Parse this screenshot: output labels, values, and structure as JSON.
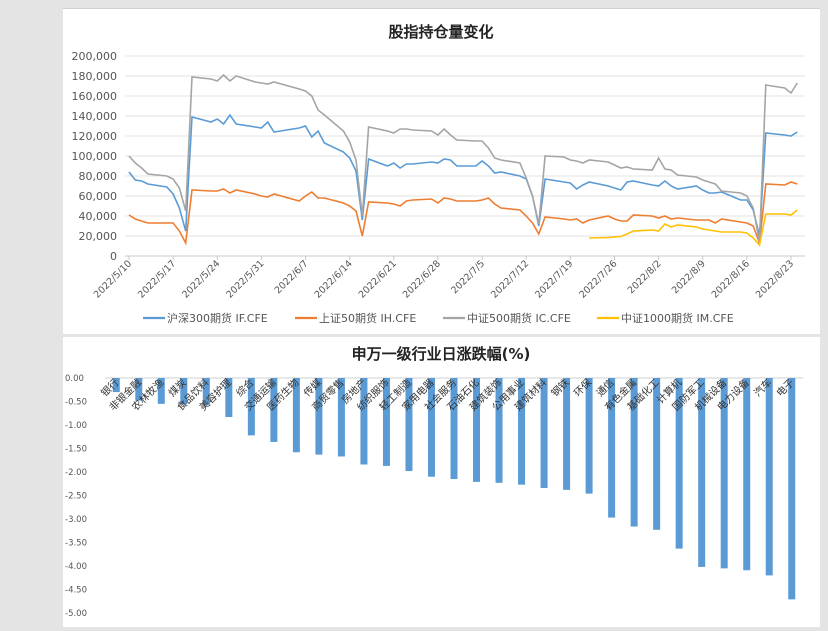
{
  "chart_data": [
    {
      "type": "line",
      "title": "股指持仓量变化",
      "xlabel": "",
      "ylabel": "",
      "ylim": [
        0,
        200000
      ],
      "yticks": [
        "0",
        "20,000",
        "40,000",
        "60,000",
        "80,000",
        "100,000",
        "120,000",
        "140,000",
        "160,000",
        "180,000",
        "200,000"
      ],
      "xtick_labels": [
        "2022/5/10",
        "2022/5/17",
        "2022/5/24",
        "2022/5/31",
        "2022/6/7",
        "2022/6/14",
        "2022/6/21",
        "2022/6/28",
        "2022/7/5",
        "2022/7/12",
        "2022/7/19",
        "2022/7/26",
        "2022/8/2",
        "2022/8/9",
        "2022/8/16",
        "2022/8/23"
      ],
      "grid": true,
      "legend_position": "bottom",
      "x": [
        "5/10",
        "5/11",
        "5/12",
        "5/13",
        "5/16",
        "5/17",
        "5/18",
        "5/19",
        "5/20",
        "5/23",
        "5/24",
        "5/25",
        "5/26",
        "5/27",
        "5/30",
        "5/31",
        "6/1",
        "6/2",
        "6/6",
        "6/7",
        "6/8",
        "6/9",
        "6/10",
        "6/13",
        "6/14",
        "6/15",
        "6/16",
        "6/17",
        "6/20",
        "6/21",
        "6/22",
        "6/23",
        "6/24",
        "6/27",
        "6/28",
        "6/29",
        "6/30",
        "7/1",
        "7/4",
        "7/5",
        "7/6",
        "7/7",
        "7/8",
        "7/11",
        "7/12",
        "7/13",
        "7/14",
        "7/15",
        "7/18",
        "7/19",
        "7/20",
        "7/21",
        "7/22",
        "7/25",
        "7/26",
        "7/27",
        "7/28",
        "7/29",
        "8/1",
        "8/2",
        "8/3",
        "8/4",
        "8/5",
        "8/8",
        "8/9",
        "8/10",
        "8/11",
        "8/12",
        "8/15",
        "8/16",
        "8/17",
        "8/18",
        "8/19",
        "8/22",
        "8/23",
        "8/24"
      ],
      "series": [
        {
          "name": "沪深300期货 IF.CFE",
          "color": "#5b9bd5",
          "values": [
            84000,
            76000,
            75000,
            72000,
            69000,
            62000,
            48000,
            25000,
            139000,
            134000,
            137000,
            132000,
            141000,
            132000,
            129000,
            128000,
            134000,
            124000,
            128000,
            130000,
            119000,
            125000,
            113000,
            104000,
            98000,
            85000,
            36000,
            97000,
            90000,
            93000,
            88000,
            92000,
            92000,
            94000,
            93000,
            97000,
            96000,
            90000,
            90000,
            95000,
            90000,
            83000,
            84000,
            80000,
            77000,
            60000,
            30000,
            77000,
            74000,
            73000,
            67000,
            71000,
            74000,
            70000,
            68000,
            66000,
            74000,
            75000,
            71000,
            70000,
            75000,
            70000,
            67000,
            70000,
            66000,
            63000,
            63000,
            64000,
            56000,
            56000,
            46000,
            20000,
            123000,
            121000,
            120000,
            124000
          ]
        },
        {
          "name": "上证50期货 IH.CFE",
          "color": "#ed7d31",
          "values": [
            41000,
            37000,
            35000,
            33000,
            33000,
            33000,
            25000,
            13000,
            66000,
            65000,
            65000,
            67000,
            63000,
            66000,
            62000,
            60000,
            59000,
            62000,
            55000,
            60000,
            64000,
            58000,
            58000,
            53000,
            50000,
            45000,
            20000,
            54000,
            53000,
            52000,
            50000,
            55000,
            56000,
            57000,
            53000,
            58000,
            57000,
            55000,
            55000,
            56000,
            58000,
            52000,
            48000,
            46000,
            40000,
            33000,
            22000,
            39000,
            37000,
            36000,
            37000,
            33000,
            36000,
            40000,
            37000,
            35000,
            35000,
            41000,
            40000,
            38000,
            40000,
            37000,
            38000,
            36000,
            36000,
            36000,
            33000,
            37000,
            34000,
            33000,
            30000,
            13000,
            72000,
            71000,
            74000,
            72000
          ]
        },
        {
          "name": "中证500期货 IC.CFE",
          "color": "#a5a5a5",
          "values": [
            100000,
            93000,
            88000,
            82000,
            80000,
            77000,
            68000,
            45000,
            179000,
            177000,
            175000,
            181000,
            175000,
            180000,
            174000,
            173000,
            172000,
            174000,
            167000,
            165000,
            160000,
            146000,
            141000,
            125000,
            114000,
            96000,
            40000,
            129000,
            125000,
            123000,
            127000,
            127000,
            126000,
            125000,
            121000,
            127000,
            121000,
            116000,
            115000,
            115000,
            108000,
            98000,
            96000,
            93000,
            78000,
            60000,
            32000,
            100000,
            99000,
            96000,
            95000,
            93000,
            96000,
            94000,
            91000,
            88000,
            89000,
            87000,
            86000,
            98000,
            87000,
            86000,
            81000,
            79000,
            76000,
            74000,
            72000,
            65000,
            63000,
            60000,
            48000,
            14000,
            171000,
            168000,
            163000,
            173000
          ]
        },
        {
          "name": "中证1000期货 IM.CFE",
          "color": "#ffc000",
          "values": [
            null,
            null,
            null,
            null,
            null,
            null,
            null,
            null,
            null,
            null,
            null,
            null,
            null,
            null,
            null,
            null,
            null,
            null,
            null,
            null,
            null,
            null,
            null,
            null,
            null,
            null,
            null,
            null,
            null,
            null,
            null,
            null,
            null,
            null,
            null,
            null,
            null,
            null,
            null,
            null,
            null,
            null,
            null,
            null,
            null,
            null,
            null,
            null,
            null,
            null,
            null,
            null,
            18000,
            18500,
            19000,
            19500,
            22000,
            25000,
            26000,
            25000,
            32000,
            29000,
            31000,
            29000,
            27000,
            26000,
            25000,
            24000,
            24000,
            23000,
            18000,
            11000,
            42000,
            42000,
            41000,
            46000
          ]
        }
      ]
    },
    {
      "type": "bar",
      "title": "申万一级行业日涨跌幅(%)",
      "xlabel": "",
      "ylabel": "",
      "ylim": [
        -5,
        0
      ],
      "yticks": [
        "0.00",
        "-0.50",
        "-1.00",
        "-1.50",
        "-2.00",
        "-2.50",
        "-3.00",
        "-3.50",
        "-4.00",
        "-4.50",
        "-5.00"
      ],
      "color": "#5b9bd5",
      "categories": [
        "银行",
        "非银金融",
        "农林牧渔",
        "煤炭",
        "食品饮料",
        "美容护理",
        "综合",
        "交通运输",
        "医药生物",
        "传媒",
        "商贸零售",
        "房地产",
        "纺织服饰",
        "轻工制造",
        "家用电器",
        "社会服务",
        "石油石化",
        "建筑装饰",
        "公用事业",
        "建筑材料",
        "钢铁",
        "环保",
        "通信",
        "有色金属",
        "基础化工",
        "计算机",
        "国防军工",
        "机械设备",
        "电力设备",
        "汽车",
        "电子"
      ],
      "values": [
        -0.3,
        -0.48,
        -0.55,
        -0.56,
        -0.57,
        -0.83,
        -1.22,
        -1.36,
        -1.58,
        -1.63,
        -1.67,
        -1.84,
        -1.87,
        -1.98,
        -2.1,
        -2.15,
        -2.21,
        -2.23,
        -2.27,
        -2.34,
        -2.38,
        -2.46,
        -2.97,
        -3.16,
        -3.23,
        -3.63,
        -4.02,
        -4.05,
        -4.09,
        -4.2,
        -4.71
      ]
    }
  ]
}
